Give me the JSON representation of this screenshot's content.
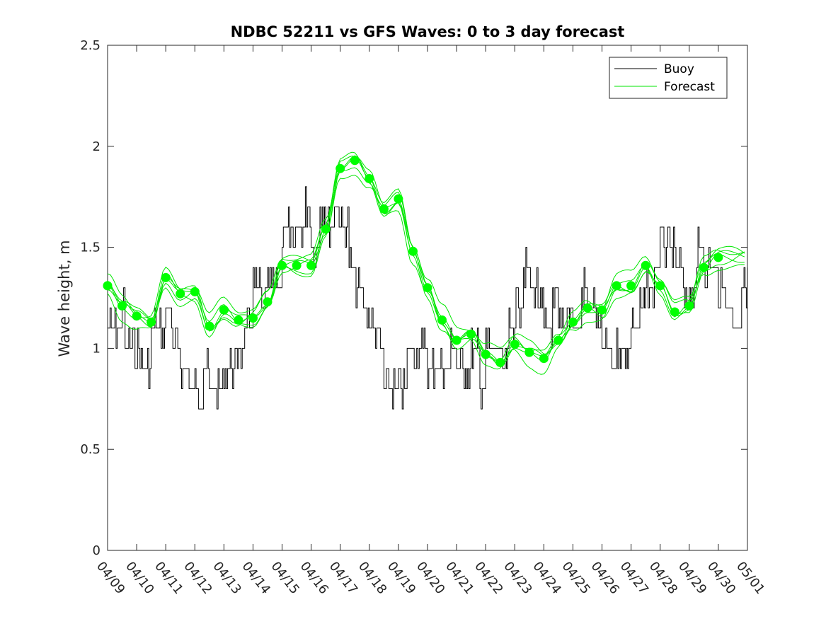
{
  "chart_data": {
    "type": "line",
    "title": "NDBC 52211 vs GFS Waves: 0 to 3 day forecast",
    "xlabel": "",
    "ylabel": "Wave height, m",
    "xlim": [
      "04/09",
      "05/01"
    ],
    "ylim": [
      0,
      2.5
    ],
    "x_tick_labels": [
      "04/09",
      "04/10",
      "04/11",
      "04/12",
      "04/13",
      "04/14",
      "04/15",
      "04/16",
      "04/17",
      "04/18",
      "04/19",
      "04/20",
      "04/21",
      "04/22",
      "04/23",
      "04/24",
      "04/25",
      "04/26",
      "04/27",
      "04/28",
      "04/29",
      "04/30",
      "05/01"
    ],
    "y_ticks": [
      0,
      0.5,
      1,
      1.5,
      2,
      2.5
    ],
    "y_tick_labels": [
      "0",
      "0.5",
      "1",
      "1.5",
      "2",
      "2.5"
    ],
    "legend_position": "top-right",
    "colors": {
      "buoy": "#000000",
      "forecast": "#00e600",
      "forecast_marker": "#00ff00"
    },
    "series": [
      {
        "name": "Buoy",
        "x_days_from_start": [
          0,
          0.5,
          0.6,
          0.9,
          1.2,
          1.5,
          1.8,
          2.0,
          2.2,
          2.5,
          2.8,
          3.0,
          3.3,
          3.5,
          3.8,
          4.0,
          4.3,
          4.5,
          4.8,
          5.0,
          5.3,
          5.5,
          5.8,
          6.0,
          6.3,
          6.5,
          6.8,
          7.0,
          7.3,
          7.5,
          7.8,
          8.0,
          8.3,
          8.5,
          8.8,
          9.0,
          9.3,
          9.5,
          9.8,
          10.0,
          10.3,
          10.5,
          10.8,
          11.0,
          11.3,
          11.5,
          11.8,
          12.0,
          12.3,
          12.5,
          12.8,
          13.0,
          13.3,
          13.5,
          13.8,
          14.0,
          14.3,
          14.5,
          14.8,
          15.0,
          15.3,
          15.5,
          15.8,
          16.0,
          16.3,
          16.5,
          16.8,
          17.0,
          17.3,
          17.5,
          17.8,
          18.0,
          18.3,
          18.5,
          18.8,
          19.0,
          19.3,
          19.5,
          19.8,
          20.0,
          20.3,
          20.5,
          20.8,
          21.0,
          21.3,
          21.5,
          21.8,
          22.0
        ],
        "values": [
          1.1,
          1.2,
          1.0,
          1.0,
          0.9,
          1.1,
          1.1,
          1.2,
          1.0,
          0.9,
          0.8,
          0.8,
          0.9,
          0.8,
          0.8,
          0.9,
          0.9,
          1.0,
          1.1,
          1.3,
          1.2,
          1.3,
          1.3,
          1.6,
          1.5,
          1.6,
          1.7,
          1.5,
          1.7,
          1.6,
          1.7,
          1.6,
          1.4,
          1.3,
          1.2,
          1.1,
          1.0,
          0.8,
          0.8,
          0.8,
          1.0,
          1.0,
          1.0,
          0.9,
          0.9,
          0.9,
          1.0,
          0.9,
          0.9,
          1.0,
          0.8,
          1.0,
          1.0,
          0.9,
          1.1,
          1.2,
          1.4,
          1.3,
          1.2,
          1.1,
          1.2,
          1.1,
          1.2,
          1.1,
          1.3,
          1.2,
          1.1,
          1.0,
          0.9,
          1.0,
          1.0,
          1.1,
          1.2,
          1.3,
          1.4,
          1.5,
          1.5,
          1.4,
          1.2,
          1.3,
          1.5,
          1.4,
          1.4,
          1.3,
          1.2,
          1.1,
          1.3,
          1.3
        ]
      },
      {
        "name": "Forecast",
        "marker_x_days_from_start": [
          0,
          0.5,
          1.0,
          1.5,
          2.0,
          2.5,
          3.0,
          3.5,
          4.0,
          4.5,
          5.0,
          5.5,
          6.0,
          6.5,
          7.0,
          7.5,
          8.0,
          8.5,
          9.0,
          9.5,
          10.0,
          10.5,
          11.0,
          11.5,
          12.0,
          12.5,
          13.0,
          13.5,
          14.0,
          14.5,
          15.0,
          15.5,
          16.0,
          16.5,
          17.0,
          17.5,
          18.0,
          18.5,
          19.0,
          19.5,
          20.0,
          20.5,
          21.0
        ],
        "marker_values": [
          1.31,
          1.21,
          1.16,
          1.13,
          1.35,
          1.27,
          1.28,
          1.11,
          1.19,
          1.14,
          1.15,
          1.23,
          1.41,
          1.41,
          1.41,
          1.59,
          1.89,
          1.93,
          1.84,
          1.69,
          1.74,
          1.48,
          1.3,
          1.14,
          1.04,
          1.07,
          0.97,
          0.93,
          1.02,
          0.98,
          0.95,
          1.04,
          1.13,
          1.2,
          1.19,
          1.31,
          1.31,
          1.41,
          1.31,
          1.18,
          1.21,
          1.4,
          1.45
        ]
      }
    ]
  }
}
